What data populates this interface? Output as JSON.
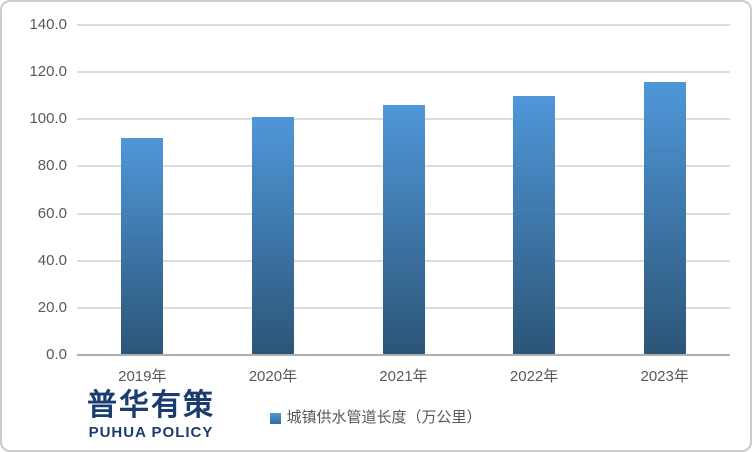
{
  "chart_data": {
    "type": "bar",
    "title": "",
    "xlabel": "",
    "ylabel": "",
    "categories": [
      "2019年",
      "2020年",
      "2021年",
      "2022年",
      "2023年"
    ],
    "series": [
      {
        "name": "城镇供水管道长度（万公里）",
        "values": [
          92.0,
          101.0,
          106.0,
          110.0,
          116.0
        ]
      }
    ],
    "ylim": [
      0,
      140
    ],
    "ytick_interval": 20,
    "ytick_labels": [
      "0.0",
      "20.0",
      "40.0",
      "60.0",
      "80.0",
      "100.0",
      "120.0",
      "140.0"
    ],
    "grid": "horizontal",
    "legend_position": "bottom-center"
  },
  "legend": {
    "marker": "square-icon",
    "label": "城镇供水管道长度（万公里）"
  },
  "logo": {
    "chinese": "普华有策",
    "english": "PUHUA POLICY"
  },
  "colors": {
    "bar_gradient_top": "#4F97D9",
    "bar_gradient_bottom": "#2C5577",
    "legend_marker_top": "#4E96D5",
    "legend_marker_bottom": "#2F6DA0",
    "gridline": "#DCDCDC",
    "axis_line": "#AFAFAF",
    "tick_text": "#595959",
    "legend_text": "#595959",
    "logo_blue": "#1B3C6E",
    "frame_border": "#CCCCCC",
    "background": "#FFFFFF"
  }
}
